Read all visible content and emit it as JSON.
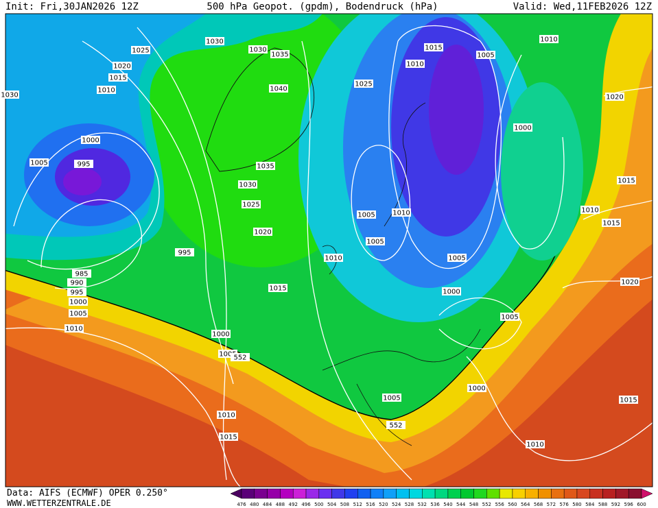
{
  "header": {
    "init": "Init: Fri,30JAN2026 12Z",
    "title": "500 hPa Geopot. (gpdm), Bodendruck (hPa)",
    "valid": "Valid: Wed,11FEB2026 12Z"
  },
  "map": {
    "isobar_labels": [
      1025,
      1030,
      1030,
      1035,
      1015,
      1005,
      1010,
      1020,
      1010,
      1015,
      1025,
      1040,
      1010,
      1030,
      1020,
      1000,
      1000,
      1005,
      995,
      1035,
      1015,
      1030,
      1025,
      1010,
      1005,
      1010,
      1015,
      1020,
      1005,
      995,
      1010,
      1005,
      985,
      990,
      995,
      1015,
      1020,
      1000,
      1000,
      1005,
      1005,
      1010,
      1000,
      1005,
      552,
      1000,
      1005,
      1015,
      1010,
      552,
      1015,
      1010
    ]
  },
  "footer": {
    "data_source": "Data: AIFS (ECMWF) OPER 0.250°",
    "website": "WWW.WETTERZENTRALE.DE"
  },
  "colorbar": {
    "labels": [
      476,
      480,
      484,
      488,
      492,
      496,
      500,
      504,
      508,
      512,
      516,
      520,
      524,
      528,
      532,
      536,
      540,
      544,
      548,
      552,
      556,
      560,
      564,
      568,
      572,
      576,
      580,
      584,
      588,
      592,
      596,
      600
    ]
  }
}
